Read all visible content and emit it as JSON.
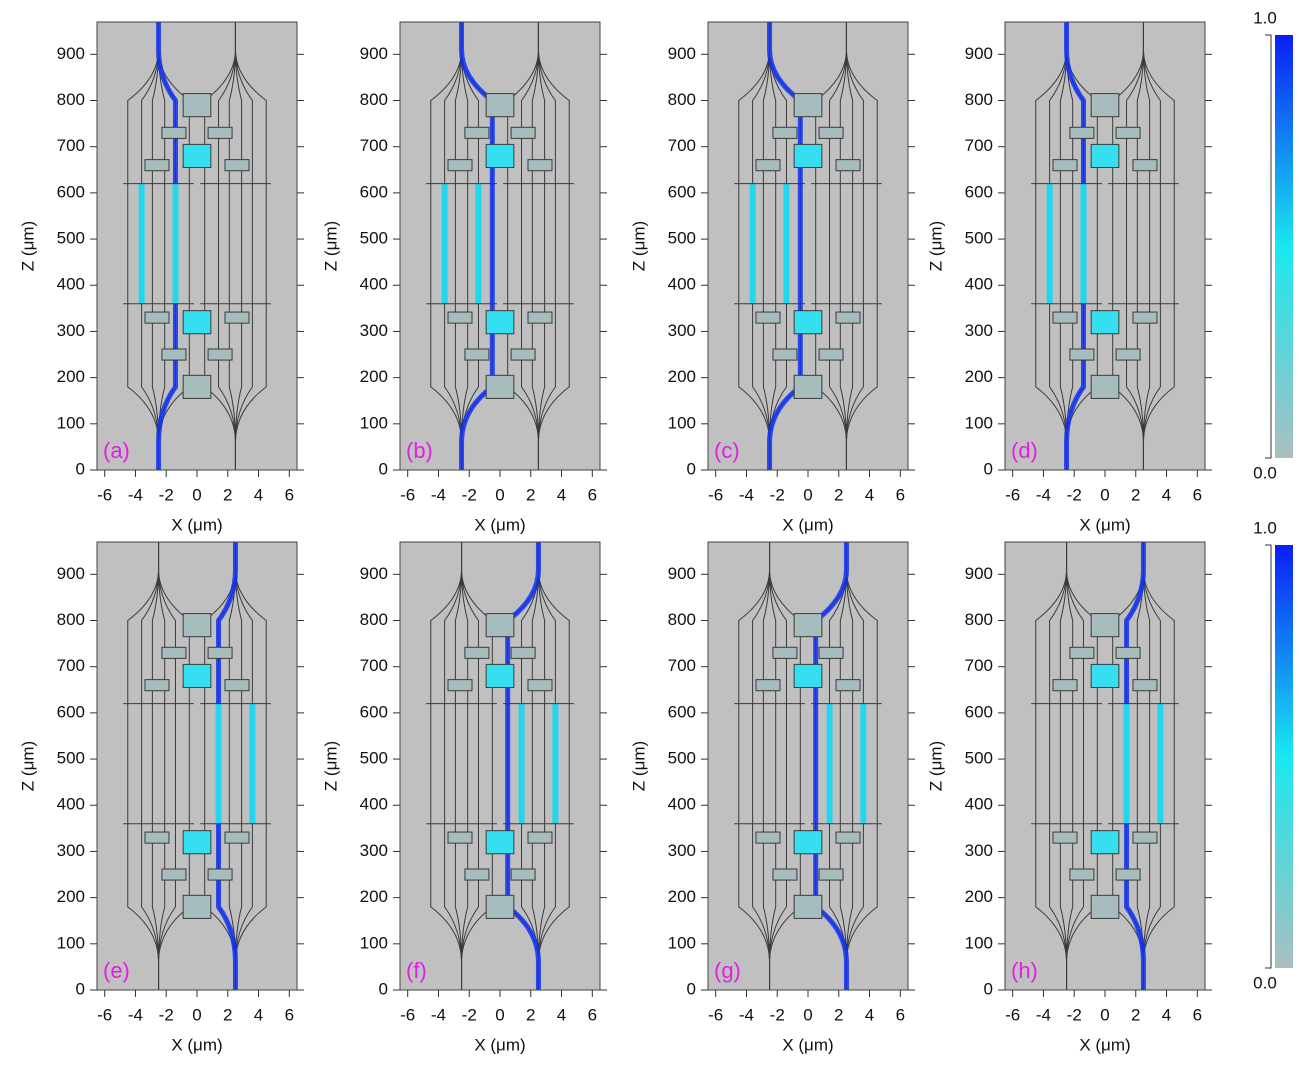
{
  "chart_data": [
    {
      "type": "field",
      "label": "(a)",
      "xlabel": "X (μm)",
      "ylabel": "Z (μm)",
      "xlim": [
        -6.5,
        6.5
      ],
      "ylim": [
        0,
        970
      ],
      "xticks": [
        -6,
        -4,
        -2,
        0,
        2,
        4,
        6
      ],
      "yticks": [
        0,
        100,
        200,
        300,
        400,
        500,
        600,
        700,
        800,
        900
      ]
    },
    {
      "type": "field",
      "label": "(b)",
      "xlabel": "X (μm)",
      "ylabel": "Z (μm)",
      "xlim": [
        -6.5,
        6.5
      ],
      "ylim": [
        0,
        970
      ],
      "xticks": [
        -6,
        -4,
        -2,
        0,
        2,
        4,
        6
      ],
      "yticks": [
        0,
        100,
        200,
        300,
        400,
        500,
        600,
        700,
        800,
        900
      ]
    },
    {
      "type": "field",
      "label": "(c)",
      "xlabel": "X (μm)",
      "ylabel": "Z (μm)",
      "xlim": [
        -6.5,
        6.5
      ],
      "ylim": [
        0,
        970
      ],
      "xticks": [
        -6,
        -4,
        -2,
        0,
        2,
        4,
        6
      ],
      "yticks": [
        0,
        100,
        200,
        300,
        400,
        500,
        600,
        700,
        800,
        900
      ]
    },
    {
      "type": "field",
      "label": "(d)",
      "xlabel": "X (μm)",
      "ylabel": "Z (μm)",
      "xlim": [
        -6.5,
        6.5
      ],
      "ylim": [
        0,
        970
      ],
      "xticks": [
        -6,
        -4,
        -2,
        0,
        2,
        4,
        6
      ],
      "yticks": [
        0,
        100,
        200,
        300,
        400,
        500,
        600,
        700,
        800,
        900
      ]
    },
    {
      "type": "field",
      "label": "(e)",
      "xlabel": "X (μm)",
      "ylabel": "Z (μm)",
      "xlim": [
        -6.5,
        6.5
      ],
      "ylim": [
        0,
        970
      ],
      "xticks": [
        -6,
        -4,
        -2,
        0,
        2,
        4,
        6
      ],
      "yticks": [
        0,
        100,
        200,
        300,
        400,
        500,
        600,
        700,
        800,
        900
      ]
    },
    {
      "type": "field",
      "label": "(f)",
      "xlabel": "X (μm)",
      "ylabel": "Z (μm)",
      "xlim": [
        -6.5,
        6.5
      ],
      "ylim": [
        0,
        970
      ],
      "xticks": [
        -6,
        -4,
        -2,
        0,
        2,
        4,
        6
      ],
      "yticks": [
        0,
        100,
        200,
        300,
        400,
        500,
        600,
        700,
        800,
        900
      ]
    },
    {
      "type": "field",
      "label": "(g)",
      "xlabel": "X (μm)",
      "ylabel": "Z (μm)",
      "xlim": [
        -6.5,
        6.5
      ],
      "ylim": [
        0,
        970
      ],
      "xticks": [
        -6,
        -4,
        -2,
        0,
        2,
        4,
        6
      ],
      "yticks": [
        0,
        100,
        200,
        300,
        400,
        500,
        600,
        700,
        800,
        900
      ]
    },
    {
      "type": "field",
      "label": "(h)",
      "xlabel": "X (μm)",
      "ylabel": "Z (μm)",
      "xlim": [
        -6.5,
        6.5
      ],
      "ylim": [
        0,
        970
      ],
      "xticks": [
        -6,
        -4,
        -2,
        0,
        2,
        4,
        6
      ],
      "yticks": [
        0,
        100,
        200,
        300,
        400,
        500,
        600,
        700,
        800,
        900
      ]
    },
    {
      "type": "colorbar",
      "ylim": [
        0,
        1
      ],
      "yticks": [
        {
          "value": 0,
          "label": "0.0"
        },
        {
          "value": 1,
          "label": "1.0"
        }
      ]
    },
    {
      "type": "colorbar",
      "ylim": [
        0,
        1
      ],
      "yticks": [
        {
          "value": 0,
          "label": "0.0"
        },
        {
          "value": 1,
          "label": "1.0"
        }
      ]
    }
  ]
}
